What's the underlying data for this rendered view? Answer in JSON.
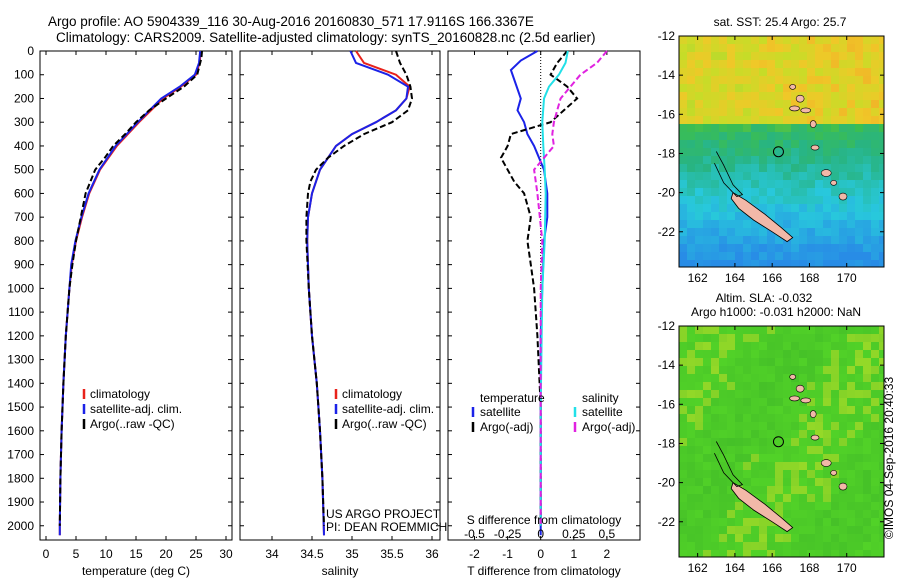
{
  "header": {
    "line1": "Argo profile: AO 5904339_116 30-Aug-2016 20160830_571 17.9116S 166.3367E",
    "line2": "Climatology: CARS2009. Satellite-adjusted climatology: synTS_20160828.nc (2.5d earlier)"
  },
  "depth_axis": {
    "ticks": [
      0,
      100,
      200,
      300,
      400,
      500,
      600,
      700,
      800,
      900,
      1000,
      1100,
      1200,
      1300,
      1400,
      1500,
      1600,
      1700,
      1800,
      1900,
      2000
    ],
    "ylim": [
      0,
      2060
    ]
  },
  "colors": {
    "climatology": "#e8221b",
    "satellite": "#1b22e8",
    "argo": "#000000",
    "sal_satellite": "#22e0e8",
    "sal_argo": "#e022e0"
  },
  "chart_data": [
    {
      "type": "line",
      "xlabel": "temperature (deg C)",
      "xlim": [
        -1,
        31
      ],
      "xticks": [
        0,
        5,
        10,
        15,
        20,
        25,
        30
      ],
      "legend": [
        "climatology",
        "satellite-adj. clim.",
        "Argo(..raw -QC)"
      ],
      "series": [
        {
          "name": "climatology",
          "depth": [
            0,
            50,
            100,
            150,
            200,
            300,
            400,
            500,
            600,
            700,
            800,
            900,
            1000,
            1200,
            1400,
            1600,
            1800,
            2000,
            2040
          ],
          "values": [
            25.8,
            25.6,
            25.0,
            22.5,
            19.5,
            15.5,
            11.8,
            9.0,
            7.2,
            6.0,
            5.0,
            4.3,
            3.9,
            3.3,
            2.9,
            2.6,
            2.4,
            2.3,
            2.3
          ]
        },
        {
          "name": "satellite-adj. clim.",
          "depth": [
            0,
            50,
            100,
            150,
            200,
            300,
            400,
            500,
            600,
            700,
            800,
            900,
            1000,
            1200,
            1400,
            1600,
            1800,
            2000,
            2040
          ],
          "values": [
            25.7,
            25.5,
            24.8,
            22.3,
            19.2,
            15.3,
            11.6,
            8.9,
            7.1,
            5.9,
            4.9,
            4.2,
            3.9,
            3.3,
            2.9,
            2.6,
            2.4,
            2.3,
            2.3
          ]
        },
        {
          "name": "Argo(..raw -QC)",
          "depth": [
            0,
            30,
            60,
            100,
            150,
            200,
            250,
            300,
            350,
            400,
            450,
            500,
            550,
            600,
            700,
            800,
            900,
            1000,
            1200,
            1400,
            1600,
            1800,
            2000
          ],
          "values": [
            26.0,
            25.9,
            25.6,
            25.2,
            23.0,
            20.0,
            17.2,
            15.0,
            13.2,
            11.2,
            9.8,
            8.2,
            7.4,
            6.6,
            5.8,
            5.0,
            4.4,
            3.9,
            3.3,
            2.9,
            2.6,
            2.4,
            2.3
          ]
        }
      ]
    },
    {
      "type": "line",
      "xlabel": "salinity",
      "xlim": [
        33.6,
        36.1
      ],
      "xticks": [
        34,
        34.5,
        35,
        35.5,
        36
      ],
      "legend": [
        "climatology",
        "satellite-adj. clim.",
        "Argo(..raw -QC)"
      ],
      "annotation": [
        "US ARGO PROJECT",
        "PI: DEAN ROEMMICH"
      ],
      "series": [
        {
          "name": "climatology",
          "depth": [
            0,
            50,
            100,
            150,
            200,
            250,
            300,
            350,
            400,
            500,
            600,
            700,
            800,
            1000,
            1200,
            1400,
            1600,
            1800,
            2040
          ],
          "values": [
            35.05,
            35.15,
            35.55,
            35.72,
            35.68,
            35.55,
            35.3,
            35.0,
            34.8,
            34.6,
            34.5,
            34.45,
            34.44,
            34.46,
            34.5,
            34.56,
            34.6,
            34.63,
            34.65
          ]
        },
        {
          "name": "satellite-adj. clim.",
          "depth": [
            0,
            50,
            100,
            150,
            200,
            250,
            300,
            350,
            400,
            500,
            600,
            700,
            800,
            1000,
            1200,
            1400,
            1600,
            1800,
            2040
          ],
          "values": [
            34.98,
            35.05,
            35.45,
            35.7,
            35.68,
            35.55,
            35.3,
            35.0,
            34.8,
            34.6,
            34.5,
            34.45,
            34.44,
            34.46,
            34.5,
            34.56,
            34.6,
            34.63,
            34.65
          ]
        },
        {
          "name": "Argo(..raw -QC)",
          "depth": [
            0,
            50,
            100,
            150,
            200,
            250,
            300,
            350,
            400,
            450,
            500,
            550,
            600,
            700,
            800,
            1000,
            1200,
            1400,
            1600,
            1800,
            2000
          ],
          "values": [
            35.55,
            35.6,
            35.68,
            35.73,
            35.75,
            35.7,
            35.5,
            35.15,
            34.9,
            34.7,
            34.55,
            34.48,
            34.45,
            34.43,
            34.43,
            34.46,
            34.5,
            34.56,
            34.6,
            34.63,
            34.65
          ]
        }
      ]
    },
    {
      "type": "line",
      "xlabel": "T difference from climatology",
      "xlim": [
        -2.8,
        3.0
      ],
      "xticks": [
        -2,
        -1,
        0,
        1,
        2
      ],
      "top_label": "S difference from climatology",
      "top_ticks": [
        -0.5,
        -0.25,
        0,
        0.25,
        0.5
      ],
      "legend_left_title": "temperature",
      "legend_right_title": "salinity",
      "legend_left": [
        "satellite",
        "Argo(-adj)"
      ],
      "legend_right": [
        "satellite",
        "Argo(-adj)"
      ],
      "series": [
        {
          "name": "temperature satellite",
          "depth": [
            0,
            40,
            80,
            120,
            160,
            200,
            250,
            300,
            350,
            400,
            500,
            600,
            700,
            800,
            1000,
            1200,
            1500,
            2000,
            2040
          ],
          "values": [
            -0.1,
            -0.6,
            -0.9,
            -0.8,
            -0.7,
            -0.6,
            -0.7,
            -0.5,
            -0.4,
            -0.2,
            0.1,
            0.2,
            0.2,
            0.1,
            0.05,
            0.0,
            0.0,
            0.0,
            0.0
          ]
        },
        {
          "name": "temperature Argo(-adj)",
          "depth": [
            0,
            50,
            100,
            150,
            200,
            250,
            300,
            350,
            400,
            450,
            500,
            550,
            600,
            700,
            800,
            900,
            1000,
            1200,
            1500,
            2000
          ],
          "values": [
            0.8,
            0.5,
            0.3,
            0.8,
            1.1,
            0.7,
            0.3,
            -0.9,
            -1.0,
            -1.2,
            -1.0,
            -0.8,
            -0.5,
            -0.3,
            -0.4,
            -0.3,
            -0.2,
            -0.1,
            0.0,
            0.0
          ]
        },
        {
          "name": "salinity satellite",
          "depth": [
            0,
            50,
            100,
            150,
            200,
            300,
            400,
            500,
            600,
            800,
            1000,
            1500,
            2000
          ],
          "values": [
            0.82,
            0.75,
            0.55,
            0.25,
            0.1,
            0.05,
            0.08,
            0.12,
            0.15,
            0.12,
            0.05,
            0.0,
            0.0
          ]
        },
        {
          "name": "salinity Argo(-adj)",
          "depth": [
            0,
            50,
            100,
            150,
            200,
            250,
            300,
            350,
            400,
            500,
            600,
            800,
            1000,
            1500,
            2000
          ],
          "values": [
            2.0,
            1.7,
            1.2,
            0.9,
            0.6,
            0.5,
            0.4,
            0.35,
            0.4,
            -0.2,
            -0.1,
            0.05,
            0.0,
            0.0,
            0.0
          ]
        }
      ]
    }
  ],
  "map_sst": {
    "label": "sat. SST: 25.4 Argo: 25.7",
    "xticks": [
      162,
      164,
      166,
      168,
      170
    ],
    "yticks": [
      -12,
      -14,
      -16,
      -18,
      -20,
      -22
    ]
  },
  "map_sla": {
    "label1": "Altim. SLA: -0.032",
    "label2": "Argo h1000: -0.031 h2000: NaN",
    "xticks": [
      162,
      164,
      166,
      168,
      170
    ],
    "yticks": [
      -12,
      -14,
      -16,
      -18,
      -20,
      -22
    ]
  },
  "credit": "©IMOS 04-Sep-2016 20:40:33"
}
